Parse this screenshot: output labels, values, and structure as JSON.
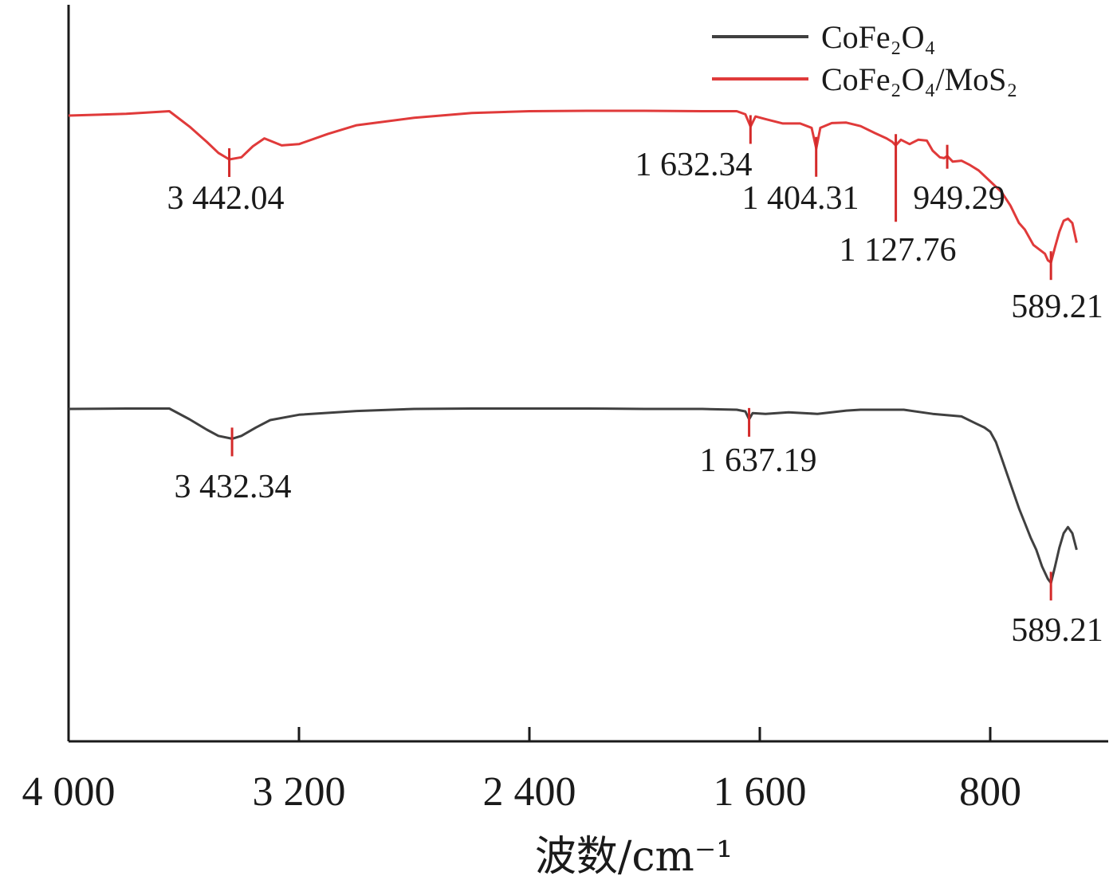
{
  "chart_data": {
    "type": "line",
    "title": "",
    "xlabel": "波数/cm⁻¹",
    "ylabel": "",
    "xlim": [
      4000,
      500
    ],
    "x_reversed": true,
    "grid": false,
    "legend_position": "top-right",
    "x_ticks": [
      {
        "value": 4000,
        "label": "4 000"
      },
      {
        "value": 3200,
        "label": "3 200"
      },
      {
        "value": 2400,
        "label": "2 400"
      },
      {
        "value": 1600,
        "label": "1 600"
      },
      {
        "value": 800,
        "label": "800"
      }
    ],
    "series": [
      {
        "name": "CoFe₂O₄/MoS₂",
        "color": "#e03a3a",
        "x": [
          4000,
          3800,
          3650,
          3580,
          3520,
          3480,
          3442,
          3400,
          3360,
          3320,
          3260,
          3200,
          3100,
          3000,
          2800,
          2600,
          2400,
          2200,
          2000,
          1800,
          1680,
          1650,
          1632,
          1615,
          1580,
          1520,
          1460,
          1420,
          1404,
          1390,
          1350,
          1300,
          1250,
          1200,
          1160,
          1140,
          1128,
          1110,
          1080,
          1050,
          1020,
          1000,
          975,
          960,
          949,
          930,
          900,
          870,
          840,
          800,
          760,
          730,
          700,
          680,
          650,
          630,
          610,
          600,
          589,
          575,
          560,
          545,
          530,
          515,
          500
        ],
        "y": [
          100,
          100.4,
          101,
          97.5,
          94,
          91.5,
          90,
          90.5,
          93,
          94.8,
          93.2,
          93.5,
          95.8,
          97.8,
          99.5,
          100.6,
          101,
          101.1,
          101.1,
          101,
          101,
          100.3,
          97.5,
          99.8,
          99.2,
          98.2,
          98.2,
          97.2,
          92.5,
          97.2,
          98.3,
          98.4,
          97.6,
          96,
          94.8,
          94,
          93.2,
          94.5,
          93.5,
          94.5,
          94.3,
          92,
          90.5,
          90.3,
          90.8,
          89.5,
          89.7,
          88.7,
          87.5,
          85,
          82.5,
          79.5,
          75.5,
          74,
          70.5,
          69.5,
          68.5,
          67,
          66.5,
          70,
          73.5,
          76,
          76.5,
          75.5,
          71
        ]
      },
      {
        "name": "CoFe₂O₄",
        "color": "#404040",
        "x": [
          4000,
          3800,
          3650,
          3580,
          3520,
          3480,
          3432,
          3400,
          3350,
          3300,
          3200,
          3000,
          2800,
          2600,
          2400,
          2200,
          2000,
          1800,
          1680,
          1650,
          1637,
          1625,
          1580,
          1500,
          1400,
          1300,
          1250,
          1200,
          1100,
          1000,
          900,
          850,
          820,
          800,
          780,
          760,
          740,
          720,
          700,
          680,
          660,
          640,
          620,
          600,
          589,
          575,
          560,
          545,
          530,
          515,
          500
        ],
        "y": [
          100,
          100.1,
          100.1,
          97.5,
          95,
          93.5,
          92.8,
          93.5,
          95.5,
          97.3,
          98.6,
          99.5,
          100,
          100.1,
          100.1,
          100.1,
          100,
          100,
          99.8,
          99.4,
          97.5,
          99,
          98.8,
          99.2,
          98.8,
          99.6,
          99.8,
          99.8,
          99.8,
          98.8,
          98.2,
          96.5,
          95.5,
          94.5,
          92,
          88,
          84,
          80,
          76,
          72.5,
          69,
          66,
          62,
          59,
          58,
          62,
          66.5,
          70,
          71.5,
          70,
          66
        ]
      }
    ],
    "annotations": [
      {
        "series": "CoFe₂O₄/MoS₂",
        "x": 3442.04,
        "label": "3 442.04"
      },
      {
        "series": "CoFe₂O₄/MoS₂",
        "x": 1632.34,
        "label": "1 632.34"
      },
      {
        "series": "CoFe₂O₄/MoS₂",
        "x": 1404.31,
        "label": "1 404.31"
      },
      {
        "series": "CoFe₂O₄/MoS₂",
        "x": 1127.76,
        "label": "1 127.76"
      },
      {
        "series": "CoFe₂O₄/MoS₂",
        "x": 949.29,
        "label": "949.29"
      },
      {
        "series": "CoFe₂O₄/MoS₂",
        "x": 589.21,
        "label": "589.21"
      },
      {
        "series": "CoFe₂O₄",
        "x": 3432.34,
        "label": "3 432.34"
      },
      {
        "series": "CoFe₂O₄",
        "x": 1637.19,
        "label": "1 637.19"
      },
      {
        "series": "CoFe₂O₄",
        "x": 589.21,
        "label": "589.21"
      }
    ],
    "annotation_color": "#d42a2a",
    "axis_color": "#1a1a1a"
  }
}
